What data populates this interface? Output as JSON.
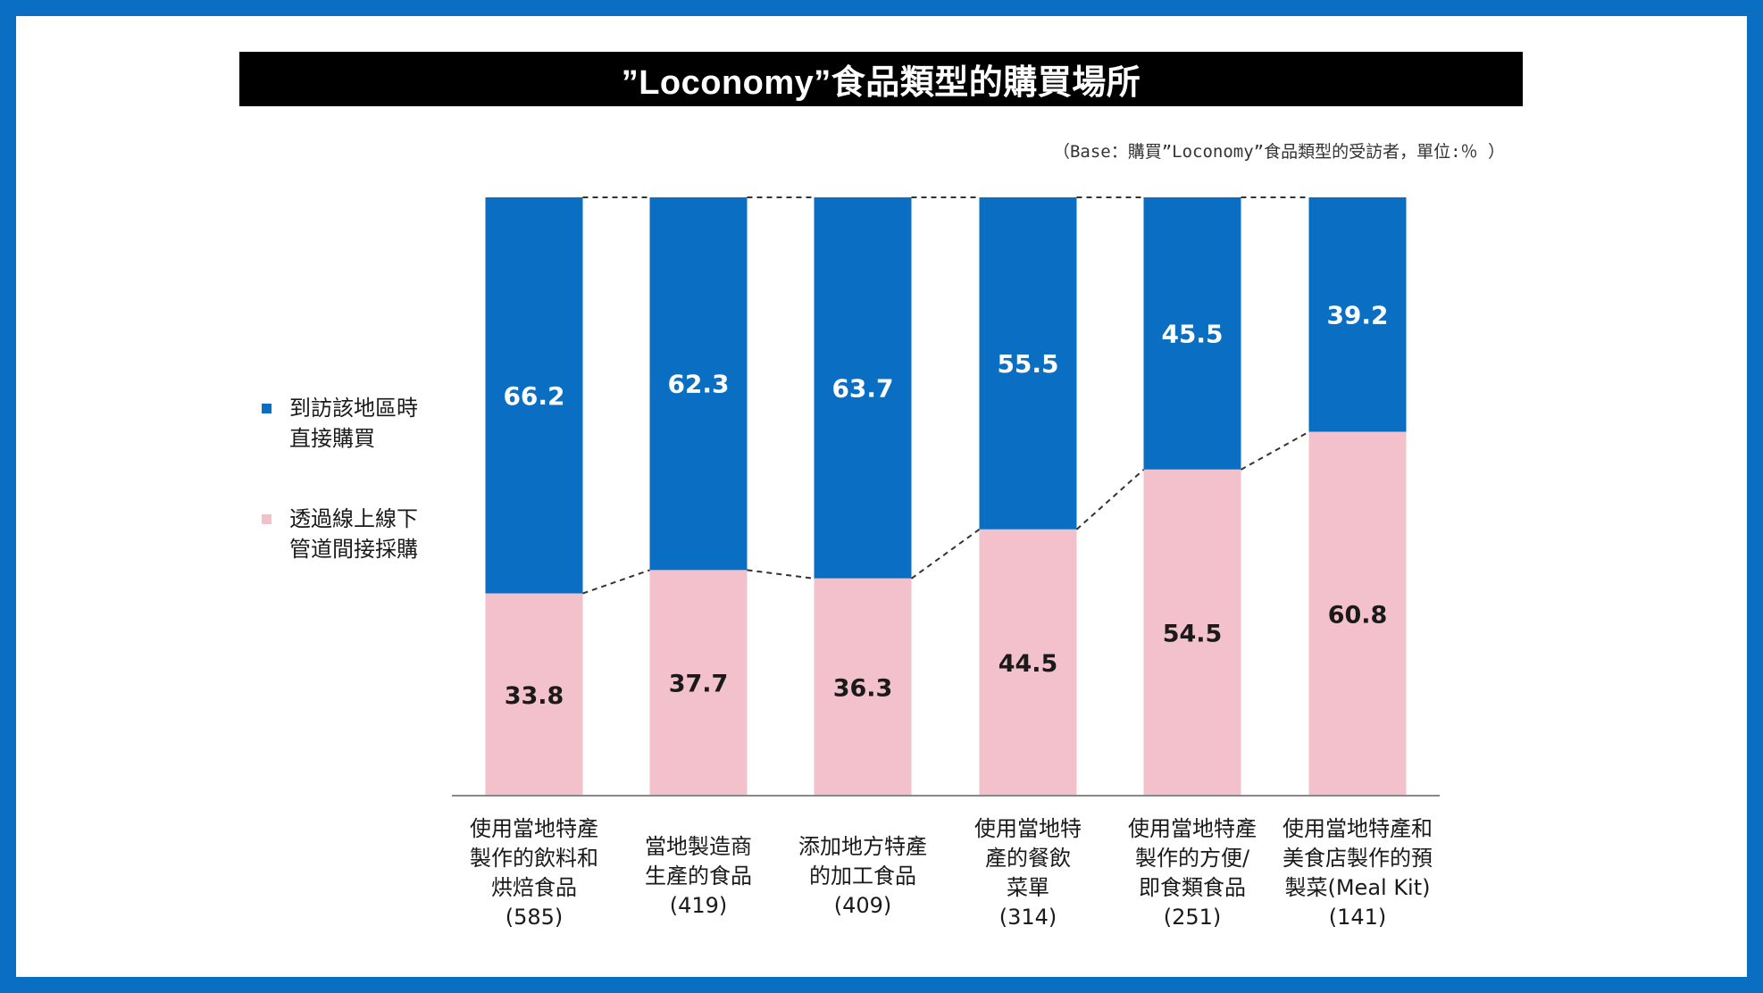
{
  "title": "”Loconomy”食品類型的購買場所",
  "base_note": "（Base：購買”Loconomy”食品類型的受訪者，單位:％ ）",
  "colors": {
    "frame": "#0a6fc2",
    "blue_series": "#0a6fc2",
    "pink_series": "#f2c1cc"
  },
  "chart_data": {
    "type": "bar",
    "stacked": true,
    "categories": [
      "使用當地特產\n製作的飲料和\n烘焙食品",
      "當地製造商\n生產的食品",
      "添加地方特產\n的加工食品",
      "使用當地特\n產的餐飲\n菜單",
      "使用當地特產\n製作的方便/\n即食類食品",
      "使用當地特產和\n美食店製作的預\n製菜(Meal Kit)"
    ],
    "counts": [
      "(585)",
      "(419)",
      "(409)",
      "(314)",
      "(251)",
      "(141)"
    ],
    "series": [
      {
        "name": "到訪該地區時\n直接購買",
        "values": [
          66.2,
          62.3,
          63.7,
          55.5,
          45.5,
          39.2
        ],
        "color": "#0a6fc2"
      },
      {
        "name": "透過線上線下\n管道間接採購",
        "values": [
          33.8,
          37.7,
          36.3,
          44.5,
          54.5,
          60.8
        ],
        "color": "#f2c1cc"
      }
    ],
    "ylim": [
      0,
      100
    ],
    "legend": "left",
    "grid": false
  }
}
